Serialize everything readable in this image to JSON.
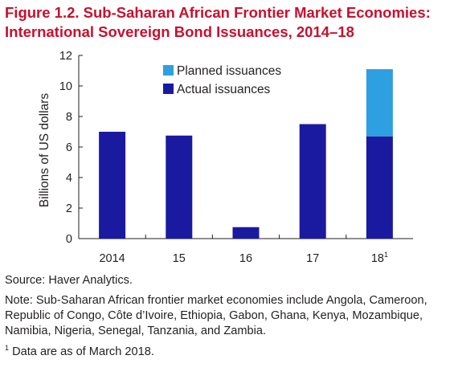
{
  "figure": {
    "title_line1": "Figure 1.2. Sub-Saharan African Frontier Market Economies:",
    "title_line2": "International Sovereign Bond Issuances, 2014–18",
    "source": "Source: Haver Analytics.",
    "note": "Note: Sub-Saharan African frontier market economies include Angola, Cameroon, Republic of Congo, Côte d’Ivoire, Ethiopia, Gabon, Ghana, Kenya, Mozambique, Namibia, Nigeria, Senegal, Tanzania, and Zambia.",
    "footnote_mark": "1",
    "footnote_text": " Data are as of March 2018."
  },
  "chart_data": {
    "type": "bar",
    "stacked": true,
    "categories": [
      "2014",
      "15",
      "16",
      "17",
      "18"
    ],
    "category_superscripts": [
      "",
      "",
      "",
      "",
      "1"
    ],
    "ylabel": "Billions of US dollars",
    "ylim": [
      0,
      12
    ],
    "yticks": [
      0,
      2,
      4,
      6,
      8,
      10,
      12
    ],
    "grid": false,
    "legend_position": "top-right",
    "series": [
      {
        "name": "Actual issuances",
        "color": "#1a1aa0",
        "values": [
          7.0,
          6.75,
          0.75,
          7.5,
          6.7
        ]
      },
      {
        "name": "Planned issuances",
        "color": "#2e9fe0",
        "values": [
          0,
          0,
          0,
          0,
          4.4
        ]
      }
    ],
    "legend_order": [
      "Planned issuances",
      "Actual issuances"
    ]
  }
}
